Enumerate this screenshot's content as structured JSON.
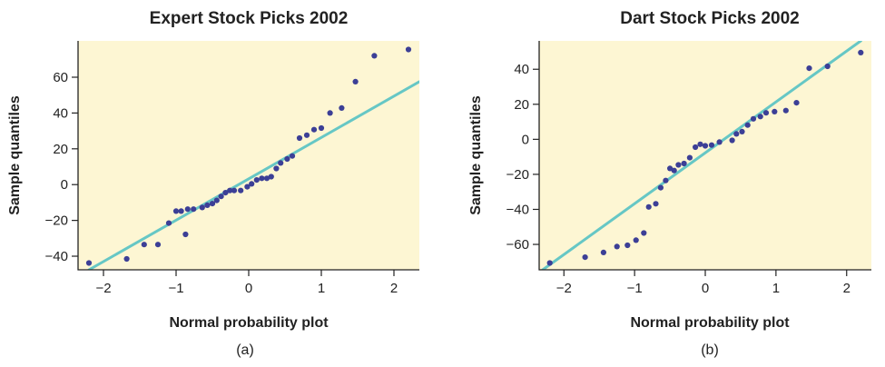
{
  "colors": {
    "plot_bg": "#fdf6d3",
    "point": "#3c3f96",
    "line": "#66c7c5",
    "axis": "#222222"
  },
  "chart_data": [
    {
      "type": "scatter",
      "caption": "(a)",
      "title": "Expert Stock Picks 2002",
      "xlabel": "Normal probability plot",
      "ylabel": "Sample quantiles",
      "xlim": [
        -2.35,
        2.35
      ],
      "ylim": [
        -47.6,
        80.3
      ],
      "xticks": [
        -2,
        -1,
        0,
        1,
        2
      ],
      "xtick_labels": [
        "−2",
        "−1",
        "0",
        "1",
        "2"
      ],
      "yticks": [
        -40,
        -20,
        0,
        20,
        40,
        60
      ],
      "ytick_labels": [
        "−40",
        "−20",
        "0",
        "20",
        "40",
        "60"
      ],
      "grid": false,
      "reference_line": {
        "x1": -2.2,
        "y1": -47.6,
        "x2": 2.35,
        "y2": 57.5
      },
      "points": [
        [
          -2.2,
          -43.8
        ],
        [
          -1.68,
          -41.5
        ],
        [
          -1.44,
          -33.5
        ],
        [
          -1.25,
          -33.5
        ],
        [
          -1.1,
          -21.5
        ],
        [
          -1.0,
          -14.8
        ],
        [
          -0.93,
          -14.8
        ],
        [
          -0.87,
          -27.8
        ],
        [
          -0.84,
          -13.7
        ],
        [
          -0.76,
          -13.7
        ],
        [
          -0.64,
          -12.8
        ],
        [
          -0.57,
          -11.5
        ],
        [
          -0.5,
          -10.6
        ],
        [
          -0.44,
          -8.8
        ],
        [
          -0.38,
          -6.6
        ],
        [
          -0.32,
          -4.5
        ],
        [
          -0.26,
          -3.3
        ],
        [
          -0.2,
          -3.3
        ],
        [
          -0.11,
          -3.3
        ],
        [
          -0.02,
          -1.2
        ],
        [
          0.04,
          0.4
        ],
        [
          0.11,
          2.6
        ],
        [
          0.18,
          3.5
        ],
        [
          0.25,
          3.5
        ],
        [
          0.31,
          4.4
        ],
        [
          0.38,
          9.0
        ],
        [
          0.44,
          12.1
        ],
        [
          0.53,
          14.3
        ],
        [
          0.6,
          16.0
        ],
        [
          0.7,
          26.0
        ],
        [
          0.8,
          27.6
        ],
        [
          0.9,
          30.7
        ],
        [
          1.0,
          31.6
        ],
        [
          1.12,
          40.0
        ],
        [
          1.28,
          42.8
        ],
        [
          1.47,
          57.5
        ],
        [
          1.73,
          72.0
        ],
        [
          2.2,
          75.5
        ]
      ]
    },
    {
      "type": "scatter",
      "caption": "(b)",
      "title": "Dart Stock Picks 2002",
      "xlabel": "Normal probability plot",
      "ylabel": "Sample quantiles",
      "xlim": [
        -2.35,
        2.35
      ],
      "ylim": [
        -74.5,
        56.2
      ],
      "xticks": [
        -2,
        -1,
        0,
        1,
        2
      ],
      "xtick_labels": [
        "−2",
        "−1",
        "0",
        "1",
        "2"
      ],
      "yticks": [
        -60,
        -40,
        -20,
        0,
        20,
        40
      ],
      "ytick_labels": [
        "−60",
        "−40",
        "−20",
        "0",
        "20",
        "40"
      ],
      "grid": false,
      "reference_line": {
        "x1": -2.3,
        "y1": -74.5,
        "x2": 2.2,
        "y2": 56.2
      },
      "points": [
        [
          -2.2,
          -70.6
        ],
        [
          -1.7,
          -67.3
        ],
        [
          -1.44,
          -64.6
        ],
        [
          -1.25,
          -61.2
        ],
        [
          -1.1,
          -60.5
        ],
        [
          -0.98,
          -57.6
        ],
        [
          -0.87,
          -53.5
        ],
        [
          -0.8,
          -38.6
        ],
        [
          -0.7,
          -36.8
        ],
        [
          -0.63,
          -27.6
        ],
        [
          -0.56,
          -23.5
        ],
        [
          -0.5,
          -16.6
        ],
        [
          -0.44,
          -17.8
        ],
        [
          -0.38,
          -14.6
        ],
        [
          -0.3,
          -13.8
        ],
        [
          -0.22,
          -10.5
        ],
        [
          -0.14,
          -4.5
        ],
        [
          -0.07,
          -2.8
        ],
        [
          0.0,
          -3.7
        ],
        [
          0.09,
          -3.3
        ],
        [
          0.2,
          -1.6
        ],
        [
          0.38,
          -0.6
        ],
        [
          0.44,
          3.1
        ],
        [
          0.52,
          4.4
        ],
        [
          0.6,
          8.1
        ],
        [
          0.68,
          11.7
        ],
        [
          0.78,
          13.0
        ],
        [
          0.86,
          15.1
        ],
        [
          0.98,
          15.8
        ],
        [
          1.14,
          16.4
        ],
        [
          1.29,
          20.9
        ],
        [
          1.47,
          40.6
        ],
        [
          1.73,
          41.7
        ],
        [
          2.2,
          49.5
        ]
      ]
    }
  ]
}
